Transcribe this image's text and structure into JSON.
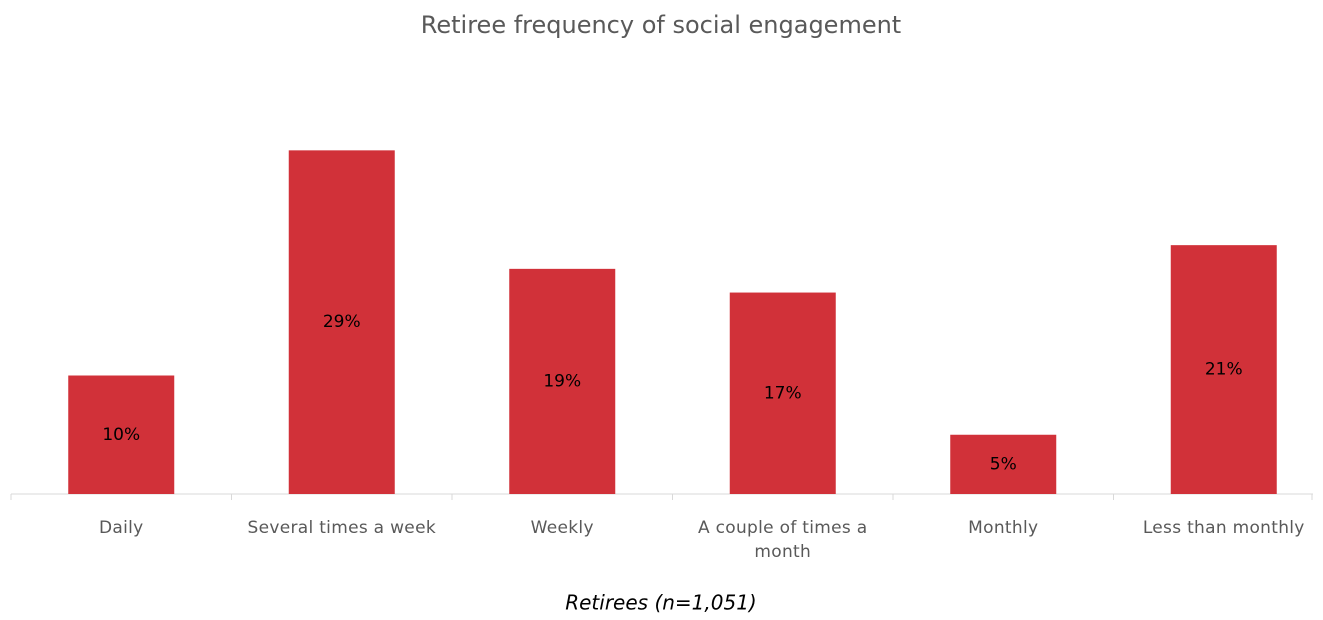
{
  "chart_data": {
    "type": "bar",
    "title": "Retiree frequency of social engagement",
    "categories": [
      "Daily",
      "Several times a week",
      "Weekly",
      "A couple of times a month",
      "Monthly",
      "Less than monthly"
    ],
    "values": [
      10,
      29,
      19,
      17,
      5,
      21
    ],
    "value_labels": [
      "10%",
      "29%",
      "19%",
      "17%",
      "5%",
      "21%"
    ],
    "color": "#d13139",
    "x_label": "Retirees (n=1,051)"
  }
}
